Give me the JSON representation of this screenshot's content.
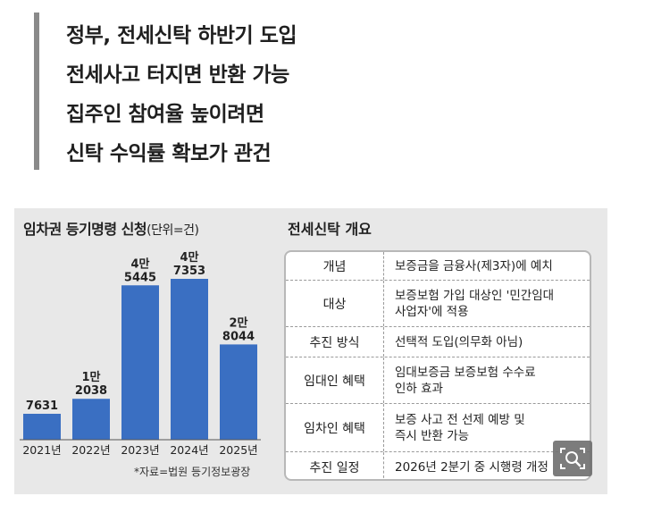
{
  "headline": {
    "lines": [
      "정부, 전세신탁 하반기 도입",
      "전세사고 터지면 반환 가능",
      "집주인 참여율 높이려면",
      "신탁 수익률 확보가 관건"
    ]
  },
  "chart_data": {
    "type": "bar",
    "title": "임차권 등기명령 신청",
    "unit": "(단위=건)",
    "categories": [
      "2021년",
      "2022년",
      "2023년",
      "2024년",
      "2025년"
    ],
    "values": [
      7631,
      12038,
      45445,
      47353,
      28044
    ],
    "value_labels": [
      [
        "7631"
      ],
      [
        "1만",
        "2038"
      ],
      [
        "4만",
        "5445"
      ],
      [
        "4만",
        "7353"
      ],
      [
        "2만",
        "8044"
      ]
    ],
    "bar_color": "#3a6fc2",
    "source": "*자료=법원 등기정보광장"
  },
  "table": {
    "title": "전세신탁 개요",
    "rows": [
      {
        "label": "개념",
        "value": "보증금을 금융사(제3자)에 예치"
      },
      {
        "label": "대상",
        "value": "보증보험 가입 대상인 '민간임대\n사업자'에 적용"
      },
      {
        "label": "추진 방식",
        "value": "선택적 도입(의무화 아님)"
      },
      {
        "label": "임대인 혜택",
        "value": "임대보증금 보증보험 수수료\n인하 효과"
      },
      {
        "label": "임차인 혜택",
        "value": "보증 사고 전 선제 예방 및\n즉시 반환 가능"
      },
      {
        "label": "추진 일정",
        "value": "2026년 2분기 중 시행령 개정"
      }
    ]
  },
  "zoom_button": {
    "icon": "zoom-search-icon"
  }
}
